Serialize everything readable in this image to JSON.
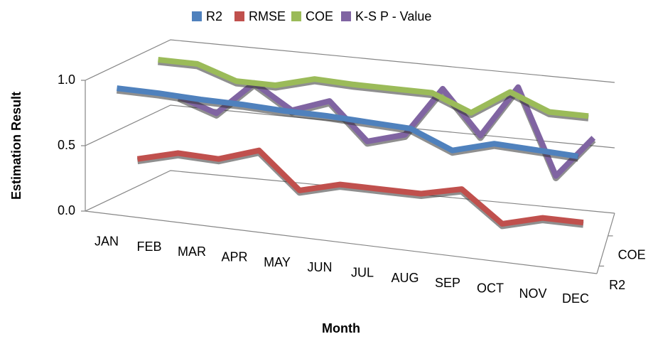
{
  "chart_data": {
    "type": "line3d",
    "x_label": "Month",
    "y_label": "Estimation Result",
    "categories": [
      "JAN",
      "FEB",
      "MAR",
      "APR",
      "MAY",
      "JUN",
      "JUL",
      "AUG",
      "SEP",
      "OCT",
      "NOV",
      "DEC"
    ],
    "series": [
      {
        "name": "R2",
        "color": "#4f81bd",
        "values": [
          0.92,
          0.92,
          0.91,
          0.91,
          0.9,
          0.9,
          0.89,
          0.88,
          0.75,
          0.84,
          0.83,
          0.82
        ]
      },
      {
        "name": "RMSE",
        "color": "#c0504d",
        "values": [
          0.3,
          0.38,
          0.37,
          0.47,
          0.2,
          0.28,
          0.28,
          0.28,
          0.35,
          0.12,
          0.2,
          0.2
        ]
      },
      {
        "name": "COE",
        "color": "#9bbb59",
        "values": [
          0.98,
          0.98,
          0.88,
          0.88,
          0.96,
          0.95,
          0.95,
          0.95,
          0.83,
          1.02,
          0.9,
          0.9
        ]
      },
      {
        "name": "K-S P - Value",
        "color": "#8064a2",
        "values": [
          0.62,
          0.52,
          0.78,
          0.6,
          0.7,
          0.42,
          0.5,
          0.88,
          0.55,
          0.95,
          0.3,
          0.62
        ]
      }
    ],
    "ylim": [
      0,
      1.0
    ],
    "yticks": [
      {
        "value": 0,
        "label": "0.0"
      },
      {
        "value": 0.5,
        "label": "0.5"
      },
      {
        "value": 1.0,
        "label": "1.0"
      }
    ],
    "depth_label_series": [
      2,
      0
    ],
    "grid": true,
    "legend": "top"
  }
}
